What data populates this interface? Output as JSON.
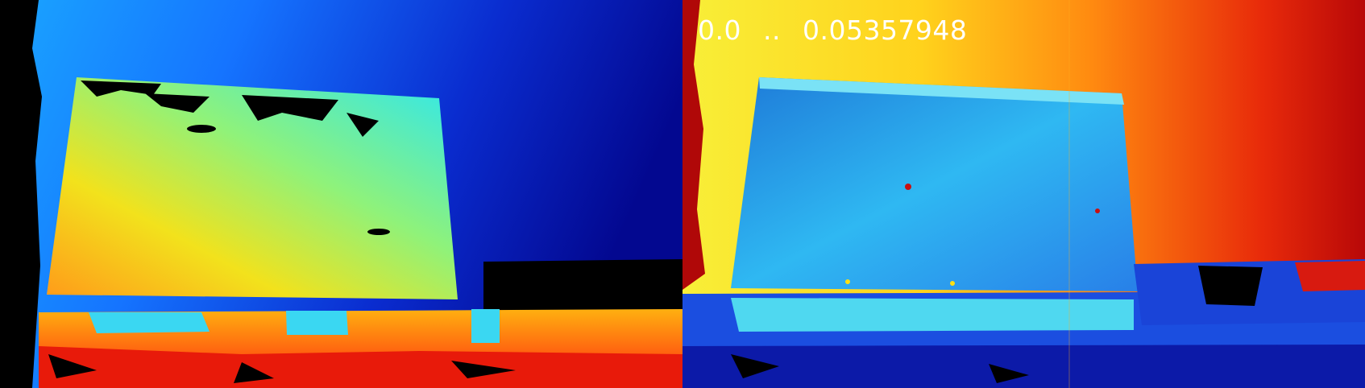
{
  "overlay": {
    "range_min": "0.0",
    "range_sep": "..",
    "range_max": "0.05357948"
  },
  "colormap": "jet",
  "panels": [
    {
      "name": "depth-map",
      "colormap": "jet"
    },
    {
      "name": "error-map",
      "colormap": "jet"
    }
  ],
  "colors": {
    "background": "#000000",
    "text": "#ffffff"
  }
}
